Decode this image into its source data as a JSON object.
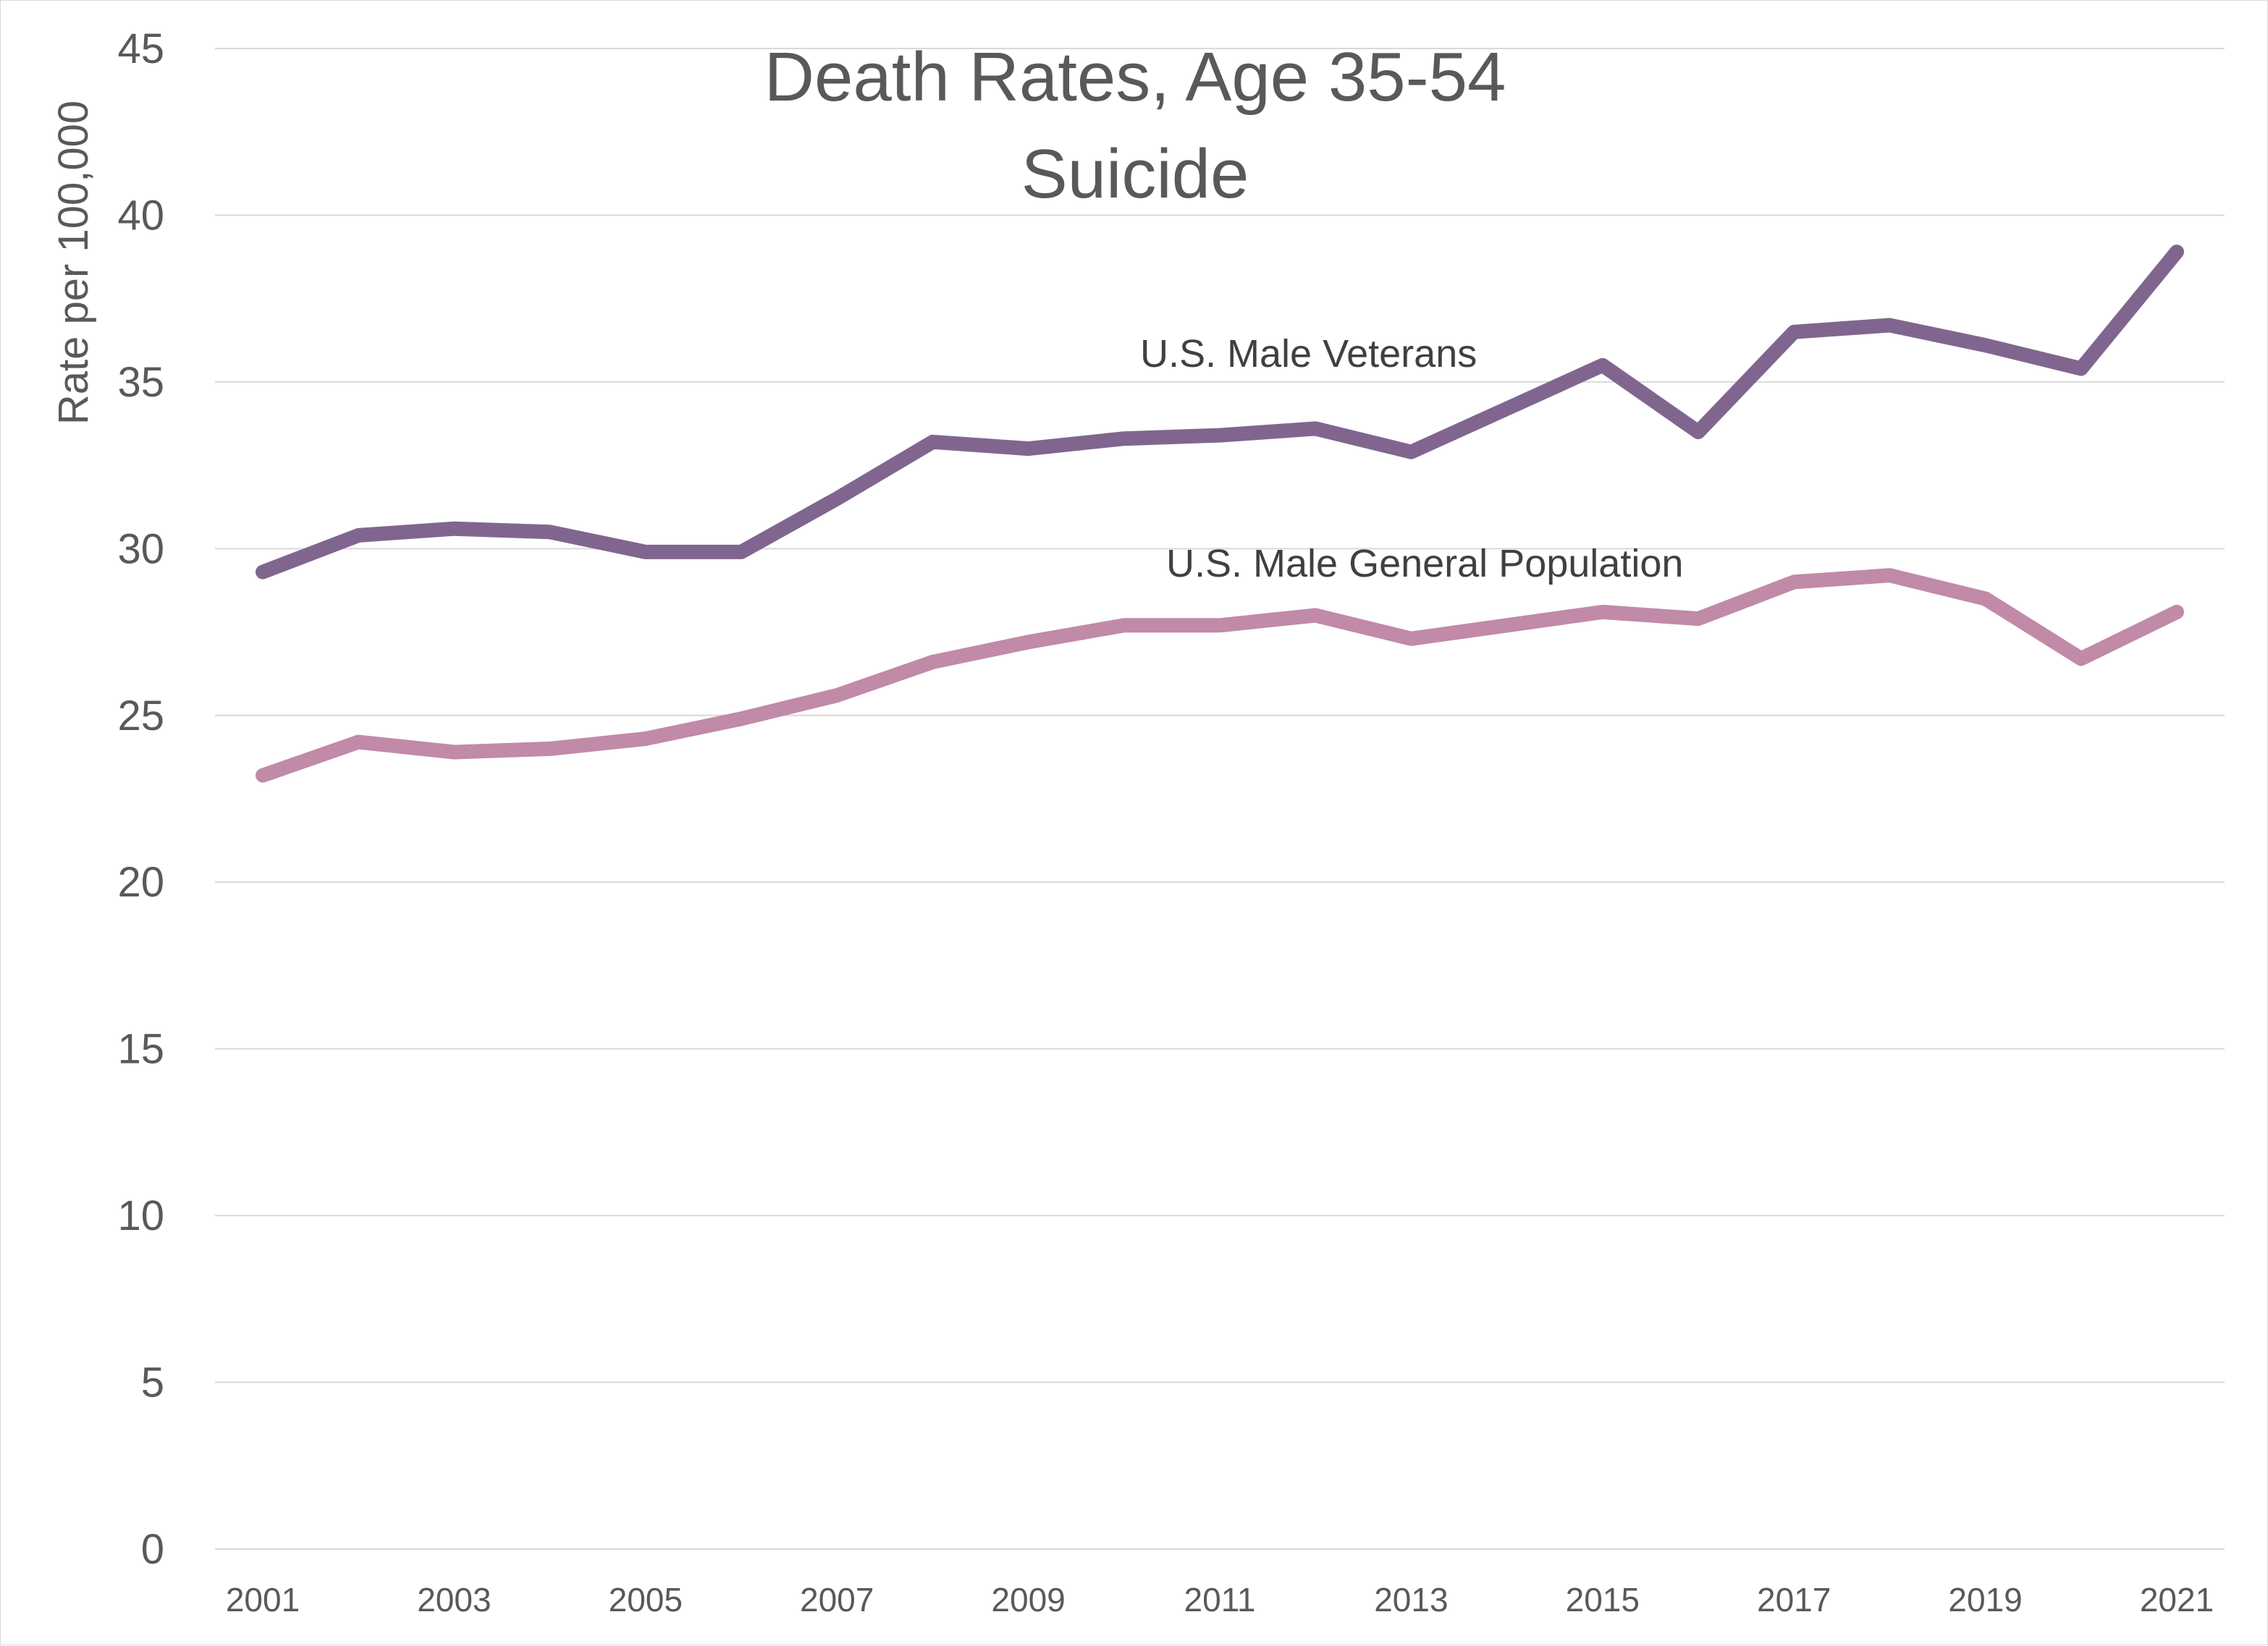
{
  "chart_data": {
    "type": "line",
    "title": "Death Rates, Age 35-54",
    "subtitle": "Suicide",
    "xlabel": "",
    "ylabel": "Rate per 100,000",
    "x": [
      2001,
      2002,
      2003,
      2004,
      2005,
      2006,
      2007,
      2008,
      2009,
      2010,
      2011,
      2012,
      2013,
      2014,
      2015,
      2016,
      2017,
      2018,
      2019,
      2020,
      2021
    ],
    "x_tick_labels": [
      "2001",
      "2003",
      "2005",
      "2007",
      "2009",
      "2011",
      "2013",
      "2015",
      "2017",
      "2019",
      "2021"
    ],
    "ylim": [
      0,
      45
    ],
    "y_ticks": [
      0,
      5,
      10,
      15,
      20,
      25,
      30,
      35,
      40,
      45
    ],
    "grid": true,
    "legend": "none",
    "series": [
      {
        "name": "U.S. Male Veterans",
        "color": "#80668f",
        "values": [
          29.3,
          30.4,
          30.6,
          30.5,
          29.9,
          29.9,
          31.5,
          33.2,
          33.0,
          33.3,
          33.4,
          33.6,
          32.9,
          34.2,
          35.5,
          33.5,
          36.5,
          36.7,
          36.1,
          35.4,
          38.9
        ]
      },
      {
        "name": "U.S. Male General Population",
        "color": "#c08aa8",
        "values": [
          23.2,
          24.2,
          23.9,
          24.0,
          24.3,
          24.9,
          25.6,
          26.6,
          27.2,
          27.7,
          27.7,
          28.0,
          27.3,
          27.7,
          28.1,
          27.9,
          29.0,
          29.2,
          28.5,
          26.7,
          28.1
        ]
      }
    ]
  }
}
